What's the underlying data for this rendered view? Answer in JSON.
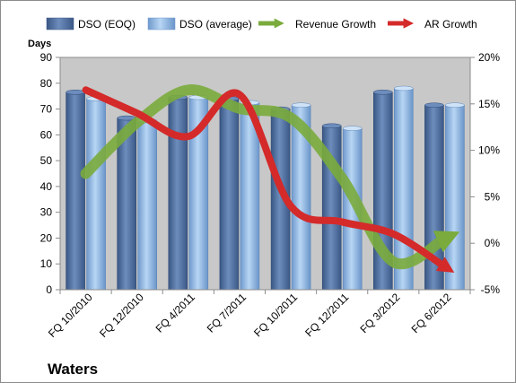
{
  "chart_data": {
    "type": "bar",
    "title": "Waters",
    "ylabel": "Days",
    "ylim": [
      0,
      90
    ],
    "yticks": [
      0,
      10,
      20,
      30,
      40,
      50,
      60,
      70,
      80,
      90
    ],
    "y2lim": [
      -5,
      20
    ],
    "y2ticks": [
      "-5%",
      "0%",
      "5%",
      "10%",
      "15%",
      "20%"
    ],
    "y2tick_values": [
      -5,
      0,
      5,
      10,
      15,
      20
    ],
    "categories": [
      "FQ 10/2010",
      "FQ 12/2010",
      "FQ 4/2011",
      "FQ 7/2011",
      "FQ 10/2011",
      "FQ 12/2011",
      "FQ 3/2012",
      "FQ 6/2012"
    ],
    "series": [
      {
        "name": "DSO (EOQ)",
        "type": "bar",
        "axis": "left",
        "values": [
          76.5,
          66.5,
          74.5,
          74,
          70,
          63.5,
          76.5,
          71.5
        ]
      },
      {
        "name": "DSO (average)",
        "type": "bar",
        "axis": "left",
        "values": [
          74,
          65.5,
          74.5,
          72.5,
          71.5,
          62.5,
          78,
          71.5
        ]
      },
      {
        "name": "Revenue Growth",
        "type": "line",
        "axis": "right",
        "values": [
          7.5,
          13,
          16.5,
          14.5,
          13.5,
          7,
          -2,
          0.5
        ]
      },
      {
        "name": "AR Growth",
        "type": "line",
        "axis": "right",
        "values": [
          16.5,
          14,
          11.5,
          16,
          4,
          2.3,
          1,
          -2.5
        ]
      }
    ],
    "legend_position": "top",
    "grid": false,
    "colors": {
      "eoq_bar": "#4f6f9e",
      "avg_bar": "#9ec1ea",
      "revenue_line": "#7aab3c",
      "ar_line": "#d42a2a",
      "plot_background": "#c8c8c8"
    }
  }
}
